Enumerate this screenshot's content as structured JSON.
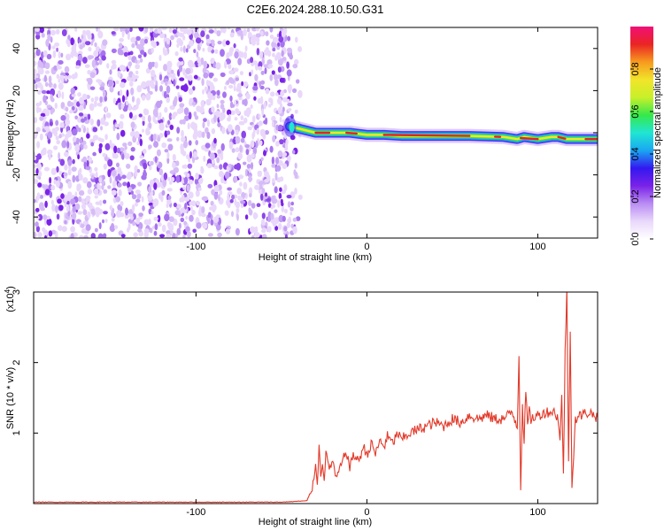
{
  "title": "C2E6.2024.288.10.50.G31",
  "colors": {
    "snr_line": "#e23a2a",
    "noise_purple": "#7a22e8",
    "ridge_red": "#e8202a",
    "colormap": [
      "#ffffff",
      "#e9d8fb",
      "#b98cf3",
      "#7a22e8",
      "#3318f0",
      "#1aa7f2",
      "#20e6d2",
      "#36e84a",
      "#c9f02a",
      "#f2e42a",
      "#f79a1f",
      "#ea2424",
      "#f20f78"
    ]
  },
  "chart_data": [
    {
      "type": "heatmap",
      "xlabel": "Height of straight line (km)",
      "ylabel": "Frequency (Hz)",
      "xlim": [
        -195,
        135
      ],
      "ylim": [
        -50,
        50
      ],
      "xticks": [
        -100,
        0,
        100
      ],
      "yticks": [
        -40,
        -20,
        0,
        20,
        40
      ],
      "noise_region_x": [
        -195,
        -45
      ],
      "signal_ridge": {
        "x": [
          -45,
          -40,
          -30,
          -20,
          -10,
          0,
          10,
          20,
          40,
          60,
          80,
          88,
          92,
          100,
          108,
          112,
          117,
          120,
          130,
          135
        ],
        "frequency": [
          3,
          2,
          0,
          0,
          0,
          -1,
          -1,
          -1.5,
          -1.5,
          -1.5,
          -2,
          -3,
          -2,
          -3,
          -2,
          -2,
          -3,
          -3,
          -3,
          -3
        ]
      },
      "colorbar": {
        "label": "Normalized spectral amplitude",
        "range": [
          0,
          1
        ],
        "ticks": [
          "0.0",
          "0.2",
          "0.4",
          "0.6",
          "0.8"
        ]
      }
    },
    {
      "type": "line",
      "xlabel": "Height of straight line (km)",
      "ylabel": "SNR (10 * v/v)",
      "multiplier": "(x10",
      "multiplier_exp": "4",
      "multiplier_close": ")",
      "xlim": [
        -195,
        135
      ],
      "ylim": [
        0,
        3
      ],
      "xticks": [
        -100,
        0,
        100
      ],
      "yticks": [
        1,
        2,
        3
      ],
      "series": [
        {
          "x": [
            -195,
            -150,
            -100,
            -50,
            -35,
            -32,
            -30,
            -29,
            -28,
            -27,
            -26,
            -25,
            -24,
            -22,
            -20,
            -18,
            -15,
            -12,
            -10,
            -8,
            -5,
            -2,
            0,
            3,
            5,
            8,
            10,
            12,
            15,
            18,
            20,
            25,
            30,
            35,
            40,
            45,
            50,
            55,
            60,
            65,
            70,
            75,
            80,
            85,
            88,
            89,
            90,
            91,
            92,
            93,
            94,
            95,
            96,
            100,
            105,
            110,
            112,
            113,
            114,
            115,
            116,
            117,
            118,
            119,
            120,
            122,
            125,
            130,
            135
          ],
          "y": [
            0.02,
            0.02,
            0.02,
            0.02,
            0.04,
            0.2,
            0.55,
            0.3,
            0.8,
            0.4,
            0.6,
            0.35,
            0.7,
            0.5,
            0.6,
            0.35,
            0.55,
            0.75,
            0.5,
            0.7,
            0.6,
            0.8,
            0.7,
            0.85,
            0.7,
            0.9,
            0.8,
            0.95,
            0.85,
            1.0,
            0.9,
            1.0,
            1.05,
            1.1,
            1.15,
            1.1,
            1.2,
            1.15,
            1.25,
            1.2,
            1.25,
            1.2,
            1.2,
            1.3,
            1.1,
            2.1,
            0.2,
            1.4,
            0.9,
            1.6,
            1.1,
            1.3,
            1.2,
            1.25,
            1.3,
            1.3,
            1.2,
            0.9,
            1.5,
            0.4,
            2.2,
            3.0,
            0.6,
            2.4,
            0.25,
            1.2,
            1.25,
            1.3,
            1.22
          ]
        }
      ]
    }
  ]
}
